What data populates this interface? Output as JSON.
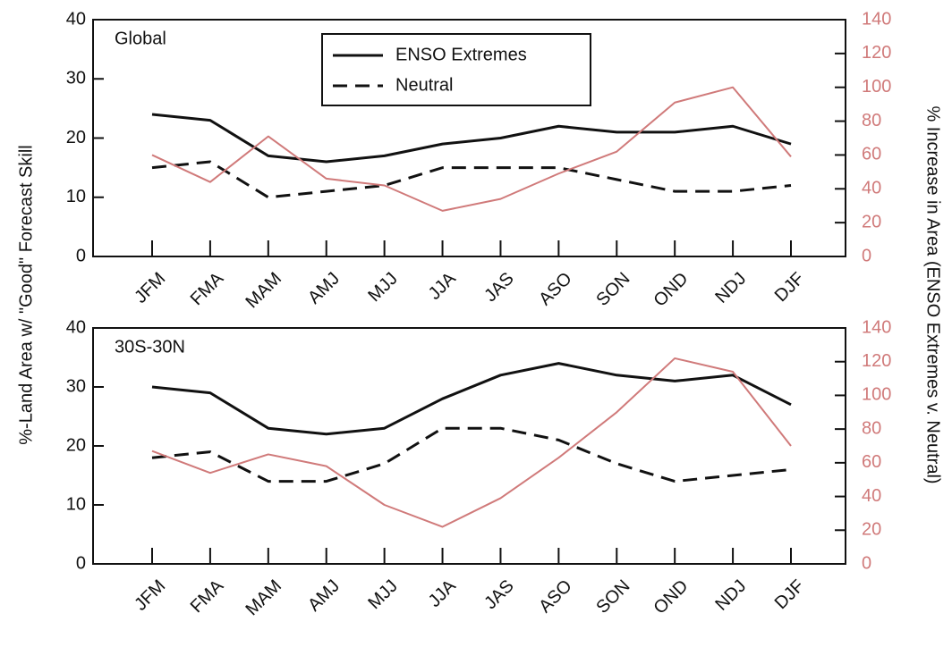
{
  "ylabel": "%-Land Area w/ \"Good\" Forecast Skill",
  "y2label": "% Increase in Area (ENSO Extremes v. Neutral)",
  "chart_data": [
    {
      "type": "line",
      "label": "Global",
      "legend": true,
      "legend_position": "upper center",
      "categories": [
        "JFM",
        "FMA",
        "MAM",
        "AMJ",
        "MJJ",
        "JJA",
        "JAS",
        "ASO",
        "SON",
        "OND",
        "NDJ",
        "DJF"
      ],
      "ylim": [
        0,
        40
      ],
      "yticks": [
        0,
        10,
        20,
        30,
        40
      ],
      "y2lim": [
        0,
        140
      ],
      "y2ticks": [
        0,
        20,
        40,
        60,
        80,
        100,
        120,
        140
      ],
      "y2color": "#d07a7a",
      "series": [
        {
          "name": "ENSO Extremes",
          "color": "#111111",
          "dash": "solid",
          "values": [
            24,
            23,
            17,
            16,
            17,
            19,
            20,
            22,
            21,
            21,
            22,
            19
          ]
        },
        {
          "name": "Neutral",
          "color": "#111111",
          "dash": "dashed",
          "values": [
            15,
            16,
            10,
            11,
            12,
            15,
            15,
            15,
            13,
            11,
            11,
            12
          ]
        },
        {
          "color": "#d07a7a",
          "dash": "solid",
          "axis": "y2",
          "values": [
            60,
            44,
            71,
            46,
            42,
            27,
            34,
            49,
            62,
            91,
            100,
            59
          ]
        }
      ]
    },
    {
      "type": "line",
      "label": "30S-30N",
      "legend": false,
      "categories": [
        "JFM",
        "FMA",
        "MAM",
        "AMJ",
        "MJJ",
        "JJA",
        "JAS",
        "ASO",
        "SON",
        "OND",
        "NDJ",
        "DJF"
      ],
      "ylim": [
        0,
        40
      ],
      "yticks": [
        0,
        10,
        20,
        30,
        40
      ],
      "y2lim": [
        0,
        140
      ],
      "y2ticks": [
        0,
        20,
        40,
        60,
        80,
        100,
        120,
        140
      ],
      "y2color": "#d07a7a",
      "series": [
        {
          "color": "#111111",
          "dash": "solid",
          "values": [
            30,
            29,
            23,
            22,
            23,
            28,
            32,
            34,
            32,
            31,
            32,
            27
          ]
        },
        {
          "color": "#111111",
          "dash": "dashed",
          "values": [
            18,
            19,
            14,
            14,
            17,
            23,
            23,
            21,
            17,
            14,
            15,
            16
          ]
        },
        {
          "color": "#d07a7a",
          "dash": "solid",
          "axis": "y2",
          "values": [
            67,
            54,
            65,
            58,
            35,
            22,
            39,
            63,
            90,
            122,
            114,
            70
          ]
        }
      ]
    }
  ]
}
